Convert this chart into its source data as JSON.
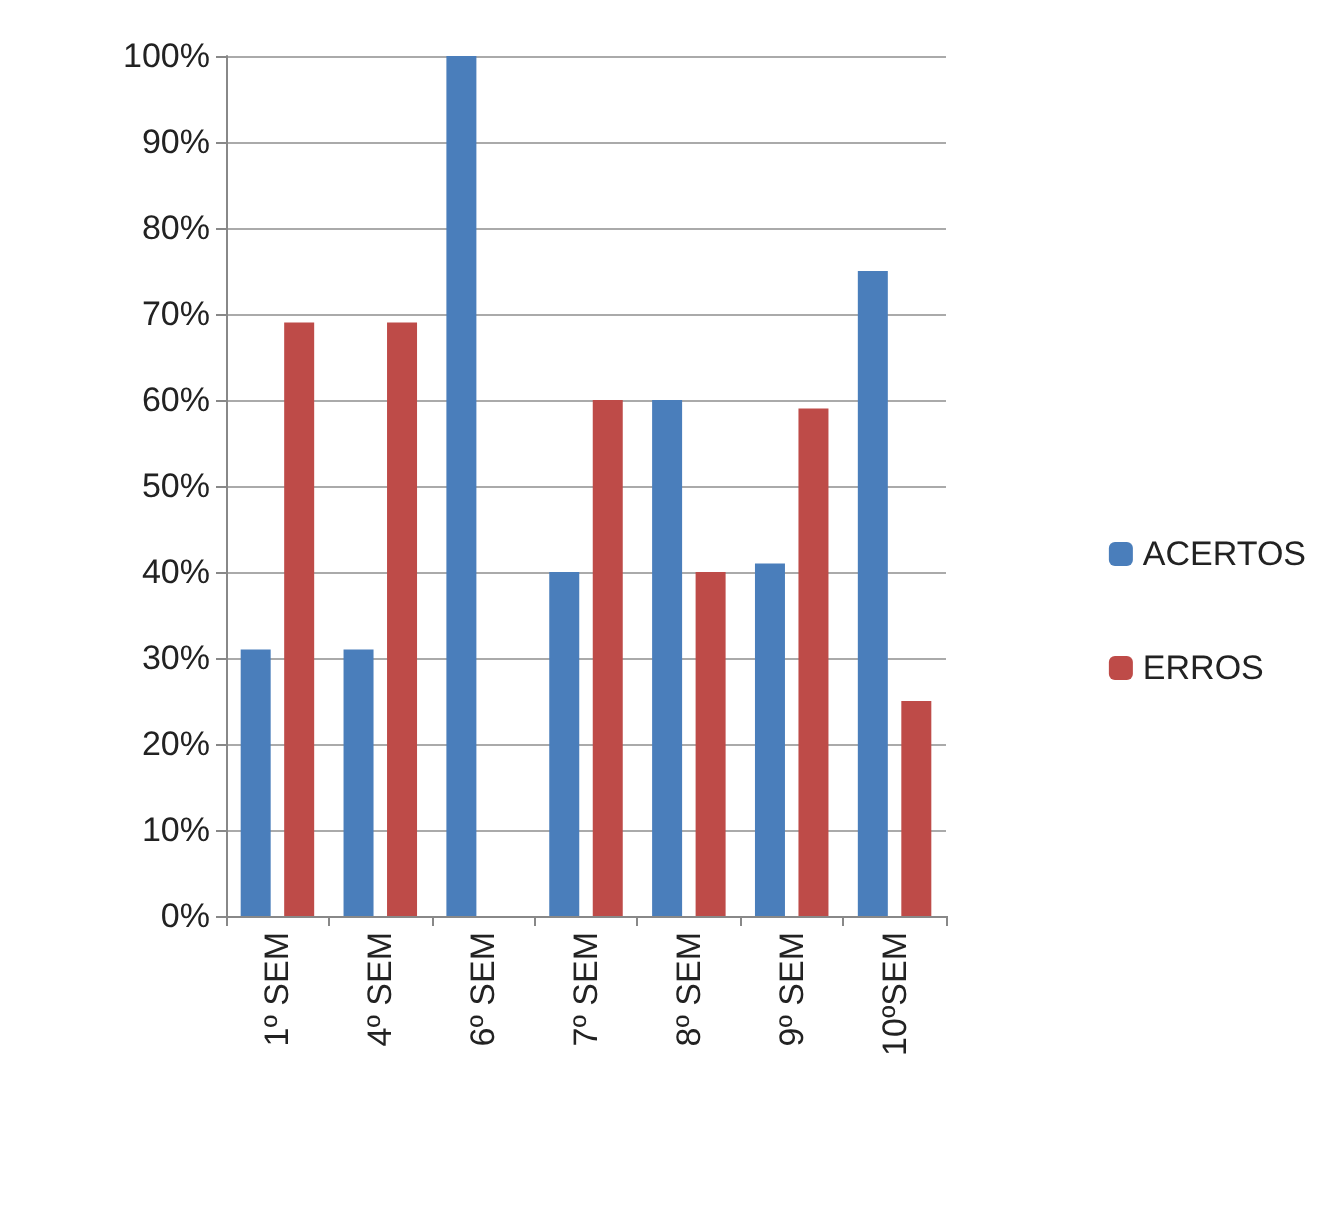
{
  "chart_data": {
    "type": "bar",
    "categories": [
      "1º SEM",
      "4º SEM",
      "6º SEM",
      "7º SEM",
      "8º SEM",
      "9º SEM",
      "10ºSEM"
    ],
    "series": [
      {
        "name": "ACERTOS",
        "color": "#4a7ebb",
        "values": [
          31,
          31,
          100,
          40,
          60,
          41,
          75
        ]
      },
      {
        "name": "ERROS",
        "color": "#be4b48",
        "values": [
          69,
          69,
          0,
          60,
          40,
          59,
          25
        ]
      }
    ],
    "ylim": [
      0,
      100
    ],
    "yticks": [
      {
        "value": 0,
        "label": "0%"
      },
      {
        "value": 10,
        "label": "10%"
      },
      {
        "value": 20,
        "label": "20%"
      },
      {
        "value": 30,
        "label": "30%"
      },
      {
        "value": 40,
        "label": "40%"
      },
      {
        "value": 50,
        "label": "50%"
      },
      {
        "value": 60,
        "label": "60%"
      },
      {
        "value": 70,
        "label": "70%"
      },
      {
        "value": 80,
        "label": "80%"
      },
      {
        "value": 90,
        "label": "90%"
      },
      {
        "value": 100,
        "label": "100%"
      }
    ],
    "grid": "y",
    "legend": "right"
  }
}
